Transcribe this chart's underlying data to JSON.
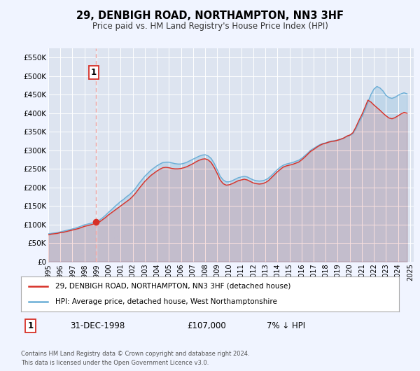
{
  "title": "29, DENBIGH ROAD, NORTHAMPTON, NN3 3HF",
  "subtitle": "Price paid vs. HM Land Registry's House Price Index (HPI)",
  "legend_line1": "29, DENBIGH ROAD, NORTHAMPTON, NN3 3HF (detached house)",
  "legend_line2": "HPI: Average price, detached house, West Northamptonshire",
  "annotation_date": "31-DEC-1998",
  "annotation_price": "£107,000",
  "annotation_hpi": "7% ↓ HPI",
  "footer1": "Contains HM Land Registry data © Crown copyright and database right 2024.",
  "footer2": "This data is licensed under the Open Government Licence v3.0.",
  "sale_date": 1998.96,
  "sale_price": 107000,
  "hpi_color": "#6baed6",
  "price_color": "#d73027",
  "dashed_line_color": "#e8a0a0",
  "background_color": "#f0f4ff",
  "plot_bg_color": "#dde4f0",
  "ylim": [
    0,
    575000
  ],
  "xlim_start": 1995.0,
  "xlim_end": 2025.3,
  "hpi_x": [
    1995.0,
    1995.25,
    1995.5,
    1995.75,
    1996.0,
    1996.25,
    1996.5,
    1996.75,
    1997.0,
    1997.25,
    1997.5,
    1997.75,
    1998.0,
    1998.25,
    1998.5,
    1998.75,
    1999.0,
    1999.25,
    1999.5,
    1999.75,
    2000.0,
    2000.25,
    2000.5,
    2000.75,
    2001.0,
    2001.25,
    2001.5,
    2001.75,
    2002.0,
    2002.25,
    2002.5,
    2002.75,
    2003.0,
    2003.25,
    2003.5,
    2003.75,
    2004.0,
    2004.25,
    2004.5,
    2004.75,
    2005.0,
    2005.25,
    2005.5,
    2005.75,
    2006.0,
    2006.25,
    2006.5,
    2006.75,
    2007.0,
    2007.25,
    2007.5,
    2007.75,
    2008.0,
    2008.25,
    2008.5,
    2008.75,
    2009.0,
    2009.25,
    2009.5,
    2009.75,
    2010.0,
    2010.25,
    2010.5,
    2010.75,
    2011.0,
    2011.25,
    2011.5,
    2011.75,
    2012.0,
    2012.25,
    2012.5,
    2012.75,
    2013.0,
    2013.25,
    2013.5,
    2013.75,
    2014.0,
    2014.25,
    2014.5,
    2014.75,
    2015.0,
    2015.25,
    2015.5,
    2015.75,
    2016.0,
    2016.25,
    2016.5,
    2016.75,
    2017.0,
    2017.25,
    2017.5,
    2017.75,
    2018.0,
    2018.25,
    2018.5,
    2018.75,
    2019.0,
    2019.25,
    2019.5,
    2019.75,
    2020.0,
    2020.25,
    2020.5,
    2020.75,
    2021.0,
    2021.25,
    2021.5,
    2021.75,
    2022.0,
    2022.25,
    2022.5,
    2022.75,
    2023.0,
    2023.25,
    2023.5,
    2023.75,
    2024.0,
    2024.25,
    2024.5,
    2024.75
  ],
  "hpi_y": [
    75000,
    76000,
    77000,
    78000,
    80000,
    82000,
    84000,
    86000,
    88000,
    90000,
    93000,
    96000,
    99000,
    101000,
    103000,
    105000,
    108000,
    112000,
    118000,
    125000,
    133000,
    140000,
    148000,
    155000,
    162000,
    168000,
    175000,
    181000,
    189000,
    198000,
    210000,
    220000,
    230000,
    238000,
    246000,
    252000,
    258000,
    263000,
    267000,
    268000,
    268000,
    266000,
    264000,
    263000,
    263000,
    265000,
    268000,
    272000,
    276000,
    280000,
    284000,
    287000,
    288000,
    285000,
    278000,
    265000,
    248000,
    230000,
    220000,
    215000,
    215000,
    218000,
    222000,
    226000,
    228000,
    230000,
    228000,
    224000,
    220000,
    218000,
    217000,
    218000,
    220000,
    225000,
    232000,
    240000,
    248000,
    255000,
    260000,
    263000,
    265000,
    267000,
    270000,
    273000,
    278000,
    285000,
    292000,
    300000,
    305000,
    310000,
    315000,
    318000,
    320000,
    323000,
    325000,
    326000,
    328000,
    330000,
    333000,
    338000,
    340000,
    345000,
    358000,
    375000,
    390000,
    408000,
    430000,
    450000,
    465000,
    472000,
    468000,
    460000,
    448000,
    442000,
    440000,
    443000,
    448000,
    452000,
    455000,
    452000
  ],
  "price_x": [
    1995.0,
    1995.25,
    1995.5,
    1995.75,
    1996.0,
    1996.25,
    1996.5,
    1996.75,
    1997.0,
    1997.25,
    1997.5,
    1997.75,
    1998.0,
    1998.25,
    1998.5,
    1998.75,
    1999.0,
    1999.25,
    1999.5,
    1999.75,
    2000.0,
    2000.25,
    2000.5,
    2000.75,
    2001.0,
    2001.25,
    2001.5,
    2001.75,
    2002.0,
    2002.25,
    2002.5,
    2002.75,
    2003.0,
    2003.25,
    2003.5,
    2003.75,
    2004.0,
    2004.25,
    2004.5,
    2004.75,
    2005.0,
    2005.25,
    2005.5,
    2005.75,
    2006.0,
    2006.25,
    2006.5,
    2006.75,
    2007.0,
    2007.25,
    2007.5,
    2007.75,
    2008.0,
    2008.25,
    2008.5,
    2008.75,
    2009.0,
    2009.25,
    2009.5,
    2009.75,
    2010.0,
    2010.25,
    2010.5,
    2010.75,
    2011.0,
    2011.25,
    2011.5,
    2011.75,
    2012.0,
    2012.25,
    2012.5,
    2012.75,
    2013.0,
    2013.25,
    2013.5,
    2013.75,
    2014.0,
    2014.25,
    2014.5,
    2014.75,
    2015.0,
    2015.25,
    2015.5,
    2015.75,
    2016.0,
    2016.25,
    2016.5,
    2016.75,
    2017.0,
    2017.25,
    2017.5,
    2017.75,
    2018.0,
    2018.25,
    2018.5,
    2018.75,
    2019.0,
    2019.25,
    2019.5,
    2019.75,
    2020.0,
    2020.25,
    2020.5,
    2020.75,
    2021.0,
    2021.25,
    2021.5,
    2021.75,
    2022.0,
    2022.25,
    2022.5,
    2022.75,
    2023.0,
    2023.25,
    2023.5,
    2023.75,
    2024.0,
    2024.25,
    2024.5,
    2024.75
  ],
  "price_y": [
    72000,
    74000,
    75000,
    76000,
    78000,
    79000,
    81000,
    83000,
    85000,
    87000,
    89000,
    92000,
    95000,
    97000,
    99000,
    101000,
    104000,
    107000,
    113000,
    119000,
    126000,
    132000,
    138000,
    144000,
    150000,
    156000,
    162000,
    168000,
    176000,
    185000,
    196000,
    206000,
    216000,
    224000,
    232000,
    238000,
    244000,
    249000,
    253000,
    254000,
    253000,
    251000,
    250000,
    250000,
    251000,
    253000,
    256000,
    260000,
    264000,
    269000,
    273000,
    276000,
    277000,
    274000,
    267000,
    254000,
    238000,
    220000,
    210000,
    206000,
    207000,
    210000,
    214000,
    218000,
    220000,
    222000,
    220000,
    216000,
    212000,
    210000,
    209000,
    210000,
    213000,
    218000,
    226000,
    234000,
    242000,
    249000,
    255000,
    258000,
    260000,
    262000,
    265000,
    268000,
    274000,
    281000,
    289000,
    297000,
    302000,
    308000,
    313000,
    317000,
    319000,
    322000,
    324000,
    325000,
    327000,
    330000,
    333000,
    338000,
    341000,
    347000,
    362000,
    380000,
    396000,
    415000,
    435000,
    430000,
    422000,
    415000,
    408000,
    400000,
    393000,
    387000,
    385000,
    388000,
    393000,
    398000,
    402000,
    400000
  ],
  "yticks": [
    0,
    50000,
    100000,
    150000,
    200000,
    250000,
    300000,
    350000,
    400000,
    450000,
    500000,
    550000
  ],
  "ytick_labels": [
    "£0",
    "£50K",
    "£100K",
    "£150K",
    "£200K",
    "£250K",
    "£300K",
    "£350K",
    "£400K",
    "£450K",
    "£500K",
    "£550K"
  ],
  "xticks": [
    1995,
    1996,
    1997,
    1998,
    1999,
    2000,
    2001,
    2002,
    2003,
    2004,
    2005,
    2006,
    2007,
    2008,
    2009,
    2010,
    2011,
    2012,
    2013,
    2014,
    2015,
    2016,
    2017,
    2018,
    2019,
    2020,
    2021,
    2022,
    2023,
    2024,
    2025
  ]
}
